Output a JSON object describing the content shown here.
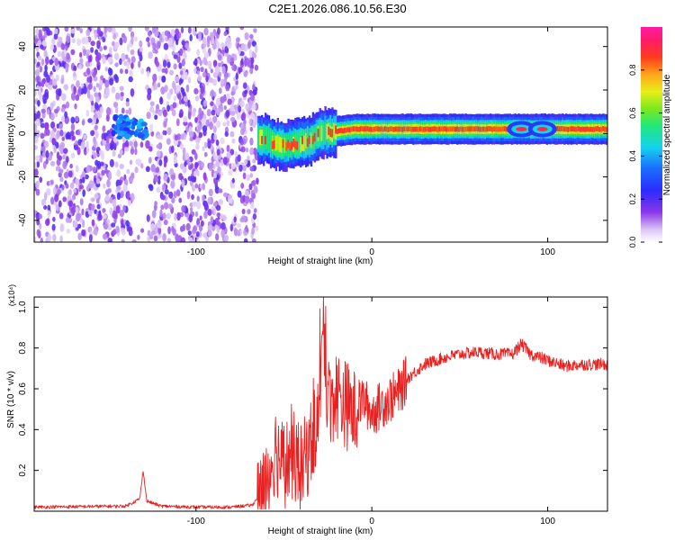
{
  "chart_data": [
    {
      "type": "heatmap",
      "title": "C2E1.2026.086.10.56.E30",
      "xlabel": "Height of straight line (km)",
      "ylabel": "Frequency (Hz)",
      "xlim": [
        -192,
        134
      ],
      "ylim": [
        -50,
        49
      ],
      "xticks": [
        "-100",
        "0",
        "100"
      ],
      "xtick_values": [
        -100,
        0,
        100
      ],
      "yticks": [
        "-40",
        "-20",
        "0",
        "20",
        "40"
      ],
      "ytick_values": [
        -40,
        -20,
        0,
        20,
        40
      ],
      "colorbar": {
        "label": "Normalized spectral amplitude",
        "ticks": [
          "0.0",
          "0.2",
          "0.4",
          "0.6",
          "0.8"
        ],
        "tick_values": [
          0.0,
          0.2,
          0.4,
          0.6,
          0.8
        ],
        "range": [
          0,
          1
        ],
        "colormap": "white-purple-blue-cyan-green-yellow-red-magenta"
      },
      "regions": [
        {
          "name": "noise",
          "x_range": [
            -192,
            -65
          ],
          "amplitude": "0.1-0.4"
        },
        {
          "name": "low-height blob",
          "x_range": [
            -147,
            -128
          ],
          "frequency_center": 3,
          "amplitude": "0.3-0.5"
        },
        {
          "name": "signal band",
          "x_range": [
            -65,
            134
          ],
          "frequency_center": 2,
          "amplitude": "0.7-0.95"
        }
      ],
      "signal_track": {
        "x": [
          -65,
          -60,
          -55,
          -50,
          -45,
          -40,
          -35,
          -30,
          -20,
          -10,
          0,
          10,
          20,
          40,
          60,
          80,
          100,
          134
        ],
        "frequency": [
          -2,
          -3,
          -5,
          -6,
          -5,
          -4,
          -3,
          0,
          1,
          2,
          2,
          2,
          2,
          2,
          2,
          2,
          2,
          2
        ]
      }
    },
    {
      "type": "line",
      "title": "",
      "xlabel": "Height of straight line (km)",
      "ylabel": "SNR (10 * v/v)",
      "y_multiplier": "(x10⁴)",
      "xlim": [
        -192,
        134
      ],
      "ylim": [
        0,
        1.05
      ],
      "xticks": [
        "-100",
        "0",
        "100"
      ],
      "xtick_values": [
        -100,
        0,
        100
      ],
      "yticks": [
        "0.2",
        "0.4",
        "0.6",
        "0.8",
        "1.0"
      ],
      "ytick_values": [
        0.2,
        0.4,
        0.6,
        0.8,
        1.0
      ],
      "series": [
        {
          "name": "SNR",
          "color": "#e82020",
          "x": [
            -192,
            -140,
            -132,
            -130,
            -128,
            -120,
            -100,
            -80,
            -68,
            -62,
            -55,
            -50,
            -45,
            -40,
            -35,
            -30,
            -28,
            -25,
            -20,
            -15,
            -10,
            -5,
            0,
            5,
            10,
            15,
            20,
            30,
            40,
            50,
            60,
            70,
            80,
            85,
            90,
            100,
            110,
            120,
            134
          ],
          "values": [
            0.02,
            0.025,
            0.06,
            0.2,
            0.05,
            0.025,
            0.02,
            0.02,
            0.03,
            0.1,
            0.33,
            0.25,
            0.3,
            0.22,
            0.35,
            0.5,
            0.92,
            0.55,
            0.6,
            0.55,
            0.5,
            0.55,
            0.48,
            0.52,
            0.55,
            0.58,
            0.65,
            0.72,
            0.75,
            0.77,
            0.78,
            0.77,
            0.77,
            0.82,
            0.77,
            0.74,
            0.71,
            0.72,
            0.72
          ]
        }
      ]
    }
  ]
}
